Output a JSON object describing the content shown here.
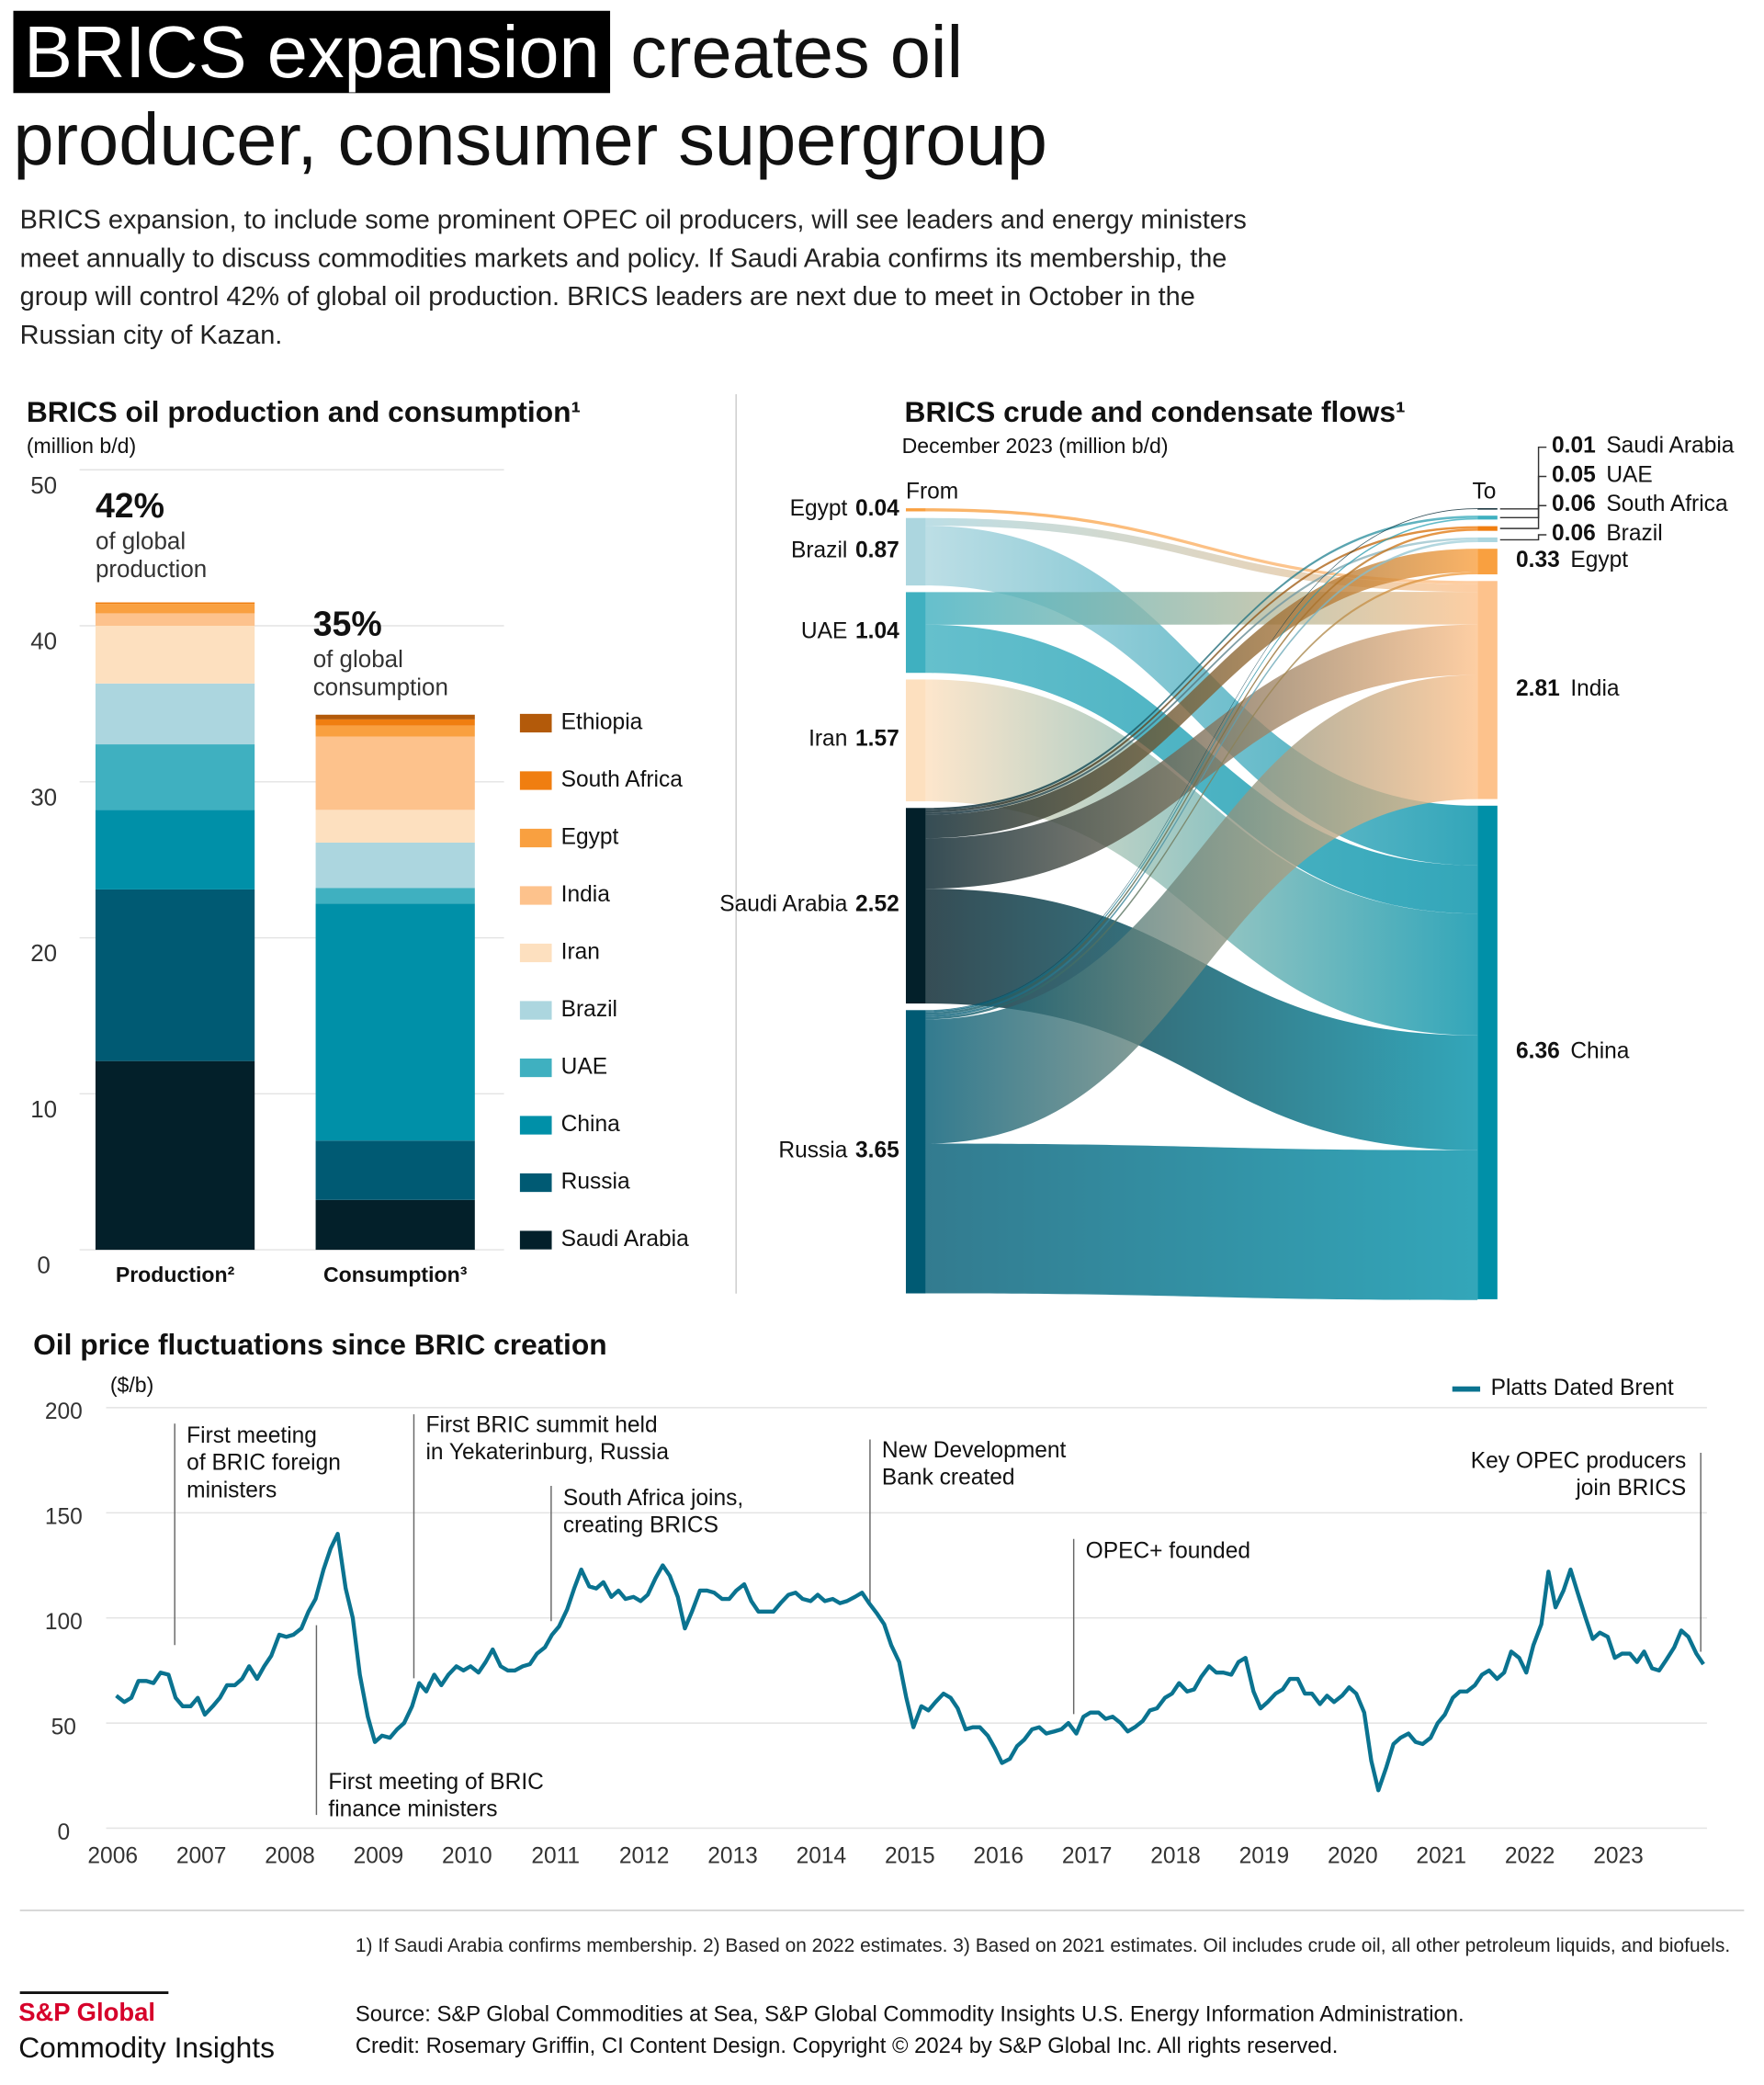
{
  "header": {
    "title_highlight": "BRICS expansion",
    "title_rest": "creates oil producer, consumer supergroup",
    "intro": "BRICS expansion, to include some prominent OPEC oil producers, will see leaders and energy ministers meet annually to discuss commodities markets and policy. If Saudi Arabia confirms its membership, the group will control 42% of global oil production. BRICS leaders are next due to meet in October in the Russian city of Kazan."
  },
  "chart_data": [
    {
      "type": "bar",
      "stacked": true,
      "title": "BRICS oil production and consumption¹",
      "subtitle": "(million b/d)",
      "categories": [
        "Production²",
        "Consumption³"
      ],
      "series": [
        {
          "name": "Saudi Arabia",
          "color": "#03202a",
          "values": [
            12.1,
            3.2
          ]
        },
        {
          "name": "Russia",
          "color": "#005a73",
          "values": [
            11.0,
            3.8
          ]
        },
        {
          "name": "China",
          "color": "#0090a8",
          "values": [
            5.1,
            15.2
          ]
        },
        {
          "name": "UAE",
          "color": "#3fb0c0",
          "values": [
            4.2,
            1.0
          ]
        },
        {
          "name": "Brazil",
          "color": "#acd6df",
          "values": [
            3.9,
            2.9
          ]
        },
        {
          "name": "Iran",
          "color": "#fde0bf",
          "values": [
            3.7,
            2.1
          ]
        },
        {
          "name": "India",
          "color": "#fdc28c",
          "values": [
            0.8,
            4.7
          ]
        },
        {
          "name": "Egypt",
          "color": "#f9a040",
          "values": [
            0.6,
            0.7
          ]
        },
        {
          "name": "South Africa",
          "color": "#f07e10",
          "values": [
            0.1,
            0.4
          ]
        },
        {
          "name": "Ethiopia",
          "color": "#b35a0a",
          "values": [
            0,
            0.3
          ]
        }
      ],
      "ylim": [
        0,
        50
      ],
      "yticks": [
        0,
        10,
        20,
        30,
        40,
        50
      ],
      "grid": true,
      "annotations": [
        {
          "label": "42%",
          "lines": [
            "of global",
            "production"
          ]
        },
        {
          "label": "35%",
          "lines": [
            "of global",
            "consumption"
          ]
        }
      ]
    },
    {
      "type": "sankey",
      "title": "BRICS crude and condensate flows¹",
      "subtitle": "December 2023 (million b/d)",
      "source_heading": "From",
      "target_heading": "To",
      "sources": [
        {
          "name": "Egypt",
          "value": 0.04,
          "color": "#f9a040"
        },
        {
          "name": "Brazil",
          "value": 0.87,
          "color": "#acd6df"
        },
        {
          "name": "UAE",
          "value": 1.04,
          "color": "#3fb0c0"
        },
        {
          "name": "Iran",
          "value": 1.57,
          "color": "#fde0bf"
        },
        {
          "name": "Saudi Arabia",
          "value": 2.52,
          "color": "#03202a"
        },
        {
          "name": "Russia",
          "value": 3.65,
          "color": "#005a73"
        }
      ],
      "targets": [
        {
          "name": "Saudi Arabia",
          "value": 0.01,
          "color": "#03202a"
        },
        {
          "name": "UAE",
          "value": 0.05,
          "color": "#3fb0c0"
        },
        {
          "name": "South Africa",
          "value": 0.06,
          "color": "#f07e10"
        },
        {
          "name": "Brazil",
          "value": 0.06,
          "color": "#acd6df"
        },
        {
          "name": "Egypt",
          "value": 0.33,
          "color": "#f9a040"
        },
        {
          "name": "India",
          "value": 2.81,
          "color": "#fdc28c"
        },
        {
          "name": "China",
          "value": 6.36,
          "color": "#0090a8"
        }
      ],
      "links": [
        {
          "source": 0,
          "target": 5,
          "value": 0.04
        },
        {
          "source": 1,
          "target": 5,
          "value": 0.1
        },
        {
          "source": 1,
          "target": 6,
          "value": 0.77
        },
        {
          "source": 2,
          "target": 5,
          "value": 0.42
        },
        {
          "source": 2,
          "target": 6,
          "value": 0.62
        },
        {
          "source": 3,
          "target": 6,
          "value": 1.57
        },
        {
          "source": 4,
          "target": 1,
          "value": 0.03
        },
        {
          "source": 4,
          "target": 2,
          "value": 0.03
        },
        {
          "source": 4,
          "target": 3,
          "value": 0.03
        },
        {
          "source": 4,
          "target": 4,
          "value": 0.3
        },
        {
          "source": 4,
          "target": 5,
          "value": 0.65
        },
        {
          "source": 4,
          "target": 6,
          "value": 1.48
        },
        {
          "source": 5,
          "target": 0,
          "value": 0.01
        },
        {
          "source": 5,
          "target": 1,
          "value": 0.02
        },
        {
          "source": 5,
          "target": 2,
          "value": 0.03
        },
        {
          "source": 5,
          "target": 3,
          "value": 0.03
        },
        {
          "source": 5,
          "target": 4,
          "value": 0.03
        },
        {
          "source": 5,
          "target": 5,
          "value": 1.6
        },
        {
          "source": 5,
          "target": 6,
          "value": 1.93
        }
      ]
    },
    {
      "type": "line",
      "title": "Oil price fluctuations since BRIC creation",
      "y_label": "($/b)",
      "xlim": [
        2006,
        2024
      ],
      "xticks": [
        2006,
        2007,
        2008,
        2009,
        2010,
        2011,
        2012,
        2013,
        2014,
        2015,
        2016,
        2017,
        2018,
        2019,
        2020,
        2021,
        2022,
        2023
      ],
      "ylim": [
        0,
        200
      ],
      "yticks": [
        0,
        50,
        100,
        150,
        200
      ],
      "grid": true,
      "legend": "top-right",
      "x": [
        2006.04,
        2006.13,
        2006.21,
        2006.29,
        2006.38,
        2006.46,
        2006.54,
        2006.63,
        2006.71,
        2006.79,
        2006.88,
        2006.96,
        2007.04,
        2007.13,
        2007.21,
        2007.29,
        2007.38,
        2007.46,
        2007.54,
        2007.63,
        2007.71,
        2007.79,
        2007.88,
        2007.96,
        2008.04,
        2008.13,
        2008.21,
        2008.29,
        2008.38,
        2008.46,
        2008.54,
        2008.63,
        2008.71,
        2008.79,
        2008.88,
        2008.96,
        2009.04,
        2009.13,
        2009.21,
        2009.29,
        2009.38,
        2009.46,
        2009.54,
        2009.63,
        2009.71,
        2009.79,
        2009.88,
        2009.96,
        2010.04,
        2010.13,
        2010.21,
        2010.29,
        2010.38,
        2010.46,
        2010.54,
        2010.63,
        2010.71,
        2010.79,
        2010.88,
        2010.96,
        2011.04,
        2011.13,
        2011.21,
        2011.29,
        2011.38,
        2011.46,
        2011.54,
        2011.63,
        2011.71,
        2011.79,
        2011.88,
        2011.96,
        2012.04,
        2012.13,
        2012.21,
        2012.29,
        2012.38,
        2012.46,
        2012.54,
        2012.63,
        2012.71,
        2012.79,
        2012.88,
        2012.96,
        2013.04,
        2013.13,
        2013.21,
        2013.29,
        2013.38,
        2013.46,
        2013.54,
        2013.63,
        2013.71,
        2013.79,
        2013.88,
        2013.96,
        2014.04,
        2014.13,
        2014.21,
        2014.29,
        2014.38,
        2014.46,
        2014.54,
        2014.63,
        2014.71,
        2014.79,
        2014.88,
        2014.96,
        2015.04,
        2015.13,
        2015.21,
        2015.29,
        2015.38,
        2015.46,
        2015.54,
        2015.63,
        2015.71,
        2015.79,
        2015.88,
        2015.96,
        2016.04,
        2016.13,
        2016.21,
        2016.29,
        2016.38,
        2016.46,
        2016.54,
        2016.63,
        2016.71,
        2016.79,
        2016.88,
        2016.96,
        2017.04,
        2017.13,
        2017.21,
        2017.29,
        2017.38,
        2017.46,
        2017.54,
        2017.63,
        2017.71,
        2017.79,
        2017.88,
        2017.96,
        2018.04,
        2018.13,
        2018.21,
        2018.29,
        2018.38,
        2018.46,
        2018.54,
        2018.63,
        2018.71,
        2018.79,
        2018.88,
        2018.96,
        2019.04,
        2019.13,
        2019.21,
        2019.29,
        2019.38,
        2019.46,
        2019.54,
        2019.63,
        2019.71,
        2019.79,
        2019.88,
        2019.96,
        2020.04,
        2020.13,
        2020.21,
        2020.29,
        2020.38,
        2020.46,
        2020.54,
        2020.63,
        2020.71,
        2020.79,
        2020.88,
        2020.96,
        2021.04,
        2021.13,
        2021.21,
        2021.29,
        2021.38,
        2021.46,
        2021.54,
        2021.63,
        2021.71,
        2021.79,
        2021.88,
        2021.96,
        2022.04,
        2022.13,
        2022.21,
        2022.29,
        2022.38,
        2022.46,
        2022.54,
        2022.63,
        2022.71,
        2022.79,
        2022.88,
        2022.96,
        2023.04,
        2023.13,
        2023.21,
        2023.29,
        2023.38,
        2023.46,
        2023.54,
        2023.63,
        2023.71,
        2023.79,
        2023.88,
        2023.96
      ],
      "series": [
        {
          "name": "Platts Dated Brent",
          "color": "#0a7390",
          "values": [
            63,
            60,
            62,
            70,
            70,
            69,
            74,
            73,
            62,
            58,
            58,
            62,
            54,
            58,
            62,
            68,
            68,
            71,
            77,
            71,
            77,
            82,
            92,
            91,
            92,
            95,
            103,
            109,
            123,
            133,
            140,
            114,
            100,
            73,
            53,
            41,
            44,
            43,
            47,
            50,
            58,
            69,
            65,
            73,
            68,
            73,
            77,
            75,
            77,
            74,
            79,
            85,
            77,
            75,
            75,
            77,
            78,
            83,
            86,
            92,
            96,
            104,
            114,
            123,
            115,
            114,
            117,
            110,
            113,
            109,
            110,
            108,
            111,
            119,
            125,
            120,
            110,
            95,
            103,
            113,
            113,
            112,
            109,
            109,
            113,
            116,
            108,
            103,
            103,
            103,
            107,
            111,
            112,
            109,
            108,
            111,
            108,
            109,
            107,
            108,
            110,
            112,
            107,
            102,
            97,
            87,
            79,
            62,
            48,
            58,
            56,
            60,
            64,
            62,
            57,
            47,
            48,
            48,
            44,
            38,
            31,
            33,
            39,
            42,
            47,
            48,
            45,
            46,
            47,
            50,
            45,
            53,
            55,
            55,
            52,
            53,
            50,
            46,
            48,
            51,
            56,
            57,
            62,
            64,
            69,
            65,
            66,
            72,
            77,
            74,
            74,
            73,
            79,
            81,
            65,
            57,
            60,
            64,
            66,
            71,
            71,
            64,
            64,
            59,
            63,
            60,
            63,
            67,
            64,
            55,
            32,
            18,
            29,
            40,
            43,
            45,
            41,
            40,
            43,
            50,
            54,
            62,
            65,
            65,
            68,
            73,
            75,
            71,
            74,
            84,
            81,
            74,
            87,
            97,
            122,
            105,
            113,
            123,
            112,
            100,
            90,
            93,
            91,
            81,
            83,
            83,
            79,
            84,
            76,
            75,
            80,
            86,
            94,
            91,
            83,
            78
          ]
        }
      ],
      "annotations": [
        {
          "x": 2006.7,
          "lines": [
            "First meeting",
            "of BRIC foreign",
            "ministers"
          ]
        },
        {
          "x": 2008.3,
          "lines": [
            "First meeting of BRIC",
            "finance ministers"
          ]
        },
        {
          "x": 2009.4,
          "lines": [
            "First BRIC summit held",
            "in Yekaterinburg, Russia"
          ]
        },
        {
          "x": 2010.95,
          "lines": [
            "South Africa joins,",
            "creating BRICS"
          ]
        },
        {
          "x": 2014.55,
          "lines": [
            "New Development",
            "Bank created"
          ]
        },
        {
          "x": 2016.85,
          "lines": [
            "OPEC+ founded"
          ]
        },
        {
          "x": 2023.93,
          "lines": [
            "Key OPEC producers",
            "join BRICS"
          ]
        }
      ]
    }
  ],
  "footer": {
    "notes": "1) If Saudi Arabia confirms membership.   2) Based on 2022 estimates.   3) Based on 2021 estimates. Oil includes crude oil, all other petroleum liquids, and biofuels.",
    "source": "Source: S&P Global Commodities at Sea, S&P Global Commodity Insights U.S. Energy Information Administration.",
    "credit": "Credit: Rosemary Griffin, CI Content Design.  Copyright © 2024 by S&P Global Inc.  All rights reserved.",
    "logo_top": "S&P Global",
    "logo_bottom": "Commodity Insights"
  }
}
